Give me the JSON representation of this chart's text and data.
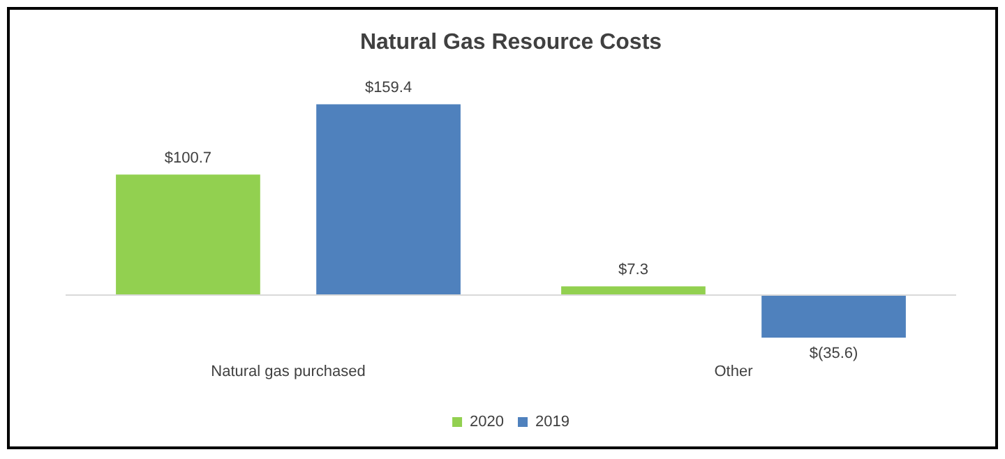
{
  "chart_data": {
    "type": "bar",
    "title": "Natural Gas Resource Costs",
    "categories": [
      "Natural gas purchased",
      "Other"
    ],
    "series": [
      {
        "name": "2020",
        "color": "#92d050",
        "values": [
          100.7,
          7.3
        ],
        "value_labels": [
          "$100.7",
          "$7.3"
        ]
      },
      {
        "name": "2019",
        "color": "#4f81bd",
        "values": [
          159.4,
          -35.6
        ],
        "value_labels": [
          "$159.4",
          "$(35.6)"
        ]
      }
    ],
    "legend": "bottom",
    "grid": false
  }
}
